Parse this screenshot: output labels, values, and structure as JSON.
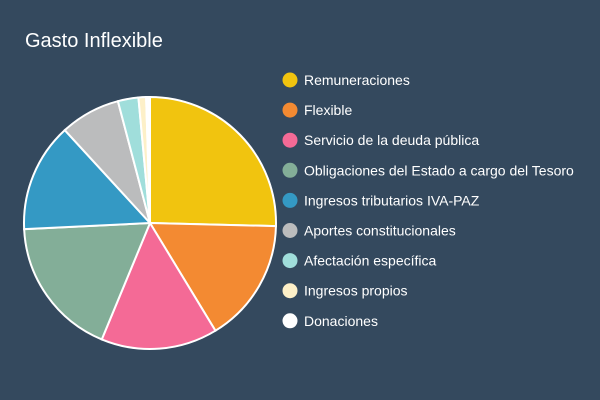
{
  "chart_data": {
    "type": "pie",
    "title": "Gasto Inflexible",
    "legend_position": "right",
    "series": [
      {
        "labels": [
          "Remuneraciones",
          "Flexible",
          "Servicio de la deuda pública",
          "Obligaciones del Estado a cargo del Tesoro",
          "Ingresos tributarios IVA-PAZ",
          "Aportes constitucionales",
          "Afectación específica",
          "Ingresos propios",
          "Donaciones"
        ],
        "values": [
          26.0,
          16.3,
          15.3,
          18.4,
          14.3,
          7.9,
          2.7,
          1.0,
          0.5
        ],
        "colors": [
          "#f1c40f",
          "#f38a32",
          "#f46a96",
          "#83ae98",
          "#3499c4",
          "#bbbcbd",
          "#a0dedb",
          "#fdf0c8",
          "#ffffff"
        ]
      }
    ]
  }
}
